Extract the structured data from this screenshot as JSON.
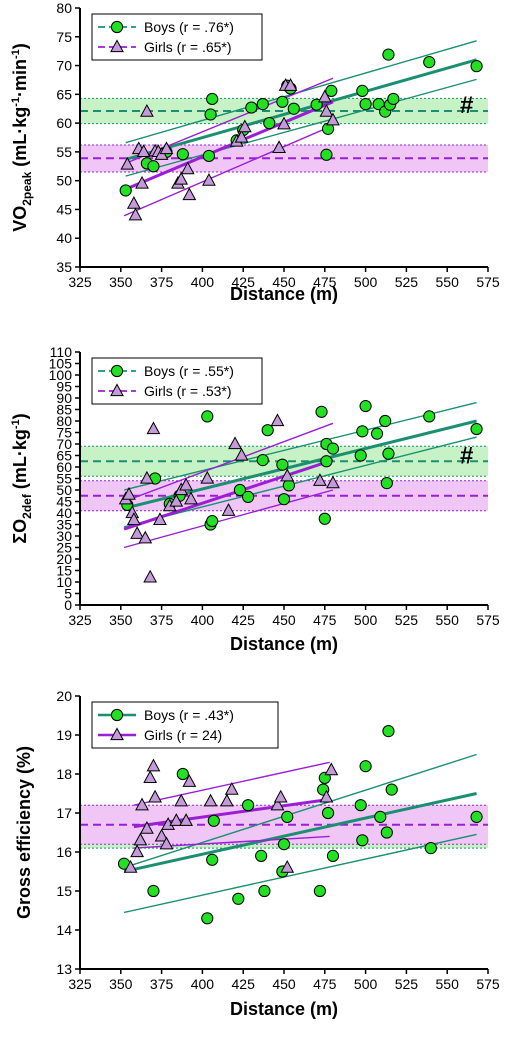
{
  "colors": {
    "boys": "#1a9070",
    "boys_fill": "#22e022",
    "girls": "#9b1ed6",
    "girls_fill": "#c49ad8",
    "boys_band": "#c6f2c6",
    "girls_band": "#efc6f5"
  },
  "chart_data": [
    {
      "type": "scatter",
      "xlabel": "Distance (m)",
      "ylabel_main": "VO",
      "ylabel_sub": "2peak",
      "ylabel_units": " (mL·kg",
      "ylabel_sup1": "-1",
      "ylabel_mid": "·min",
      "ylabel_sup2": "-1",
      "ylabel_end": ")",
      "xlim": [
        325,
        575
      ],
      "ylim": [
        35,
        80
      ],
      "xticks": [
        325,
        350,
        375,
        400,
        425,
        450,
        475,
        500,
        525,
        550,
        575
      ],
      "yticks": [
        35,
        40,
        45,
        50,
        55,
        60,
        65,
        70,
        75,
        80
      ],
      "legend": [
        "Boys (r = .76*)",
        "Girls (r = .65*)"
      ],
      "legend_position": "top-left",
      "annotation": "#",
      "series": [
        {
          "name": "Boys (r = .76*)",
          "marker": "circle",
          "points": [
            [
              353,
              48.3
            ],
            [
              366,
              53
            ],
            [
              370,
              52.5
            ],
            [
              378,
              55
            ],
            [
              388,
              54.6
            ],
            [
              404,
              54.3
            ],
            [
              405,
              61.5
            ],
            [
              406,
              64.2
            ],
            [
              421,
              57
            ],
            [
              425,
              58.8
            ],
            [
              430,
              62.7
            ],
            [
              437,
              63.3
            ],
            [
              441,
              60
            ],
            [
              449,
              63.7
            ],
            [
              452,
              66.5
            ],
            [
              454,
              66
            ],
            [
              456,
              62.5
            ],
            [
              470,
              63.2
            ],
            [
              476,
              54.5
            ],
            [
              477,
              59
            ],
            [
              479,
              65.6
            ],
            [
              498,
              65.6
            ],
            [
              500,
              63.3
            ],
            [
              508,
              63.3
            ],
            [
              512,
              62
            ],
            [
              514,
              71.9
            ],
            [
              515,
              63.2
            ],
            [
              517,
              64.2
            ],
            [
              539,
              70.6
            ],
            [
              568,
              69.9
            ]
          ],
          "mean": 62.1,
          "band": [
            59.9,
            64.3
          ],
          "fit": [
            [
              353,
              53.7
            ],
            [
              568,
              71
            ]
          ],
          "ci_upper": [
            [
              353,
              56.6
            ],
            [
              568,
              74.3
            ]
          ],
          "ci_lower": [
            [
              353,
              50.8
            ],
            [
              568,
              67.6
            ]
          ]
        },
        {
          "name": "Girls (r = .65*)",
          "marker": "triangle",
          "points": [
            [
              354,
              52.8
            ],
            [
              358,
              46
            ],
            [
              359,
              44
            ],
            [
              361,
              55.5
            ],
            [
              363,
              49.5
            ],
            [
              364,
              55
            ],
            [
              366,
              62
            ],
            [
              371,
              55.1
            ],
            [
              373,
              55
            ],
            [
              375,
              54.5
            ],
            [
              378,
              55.5
            ],
            [
              385,
              49.5
            ],
            [
              387,
              50.2
            ],
            [
              391,
              52
            ],
            [
              392,
              47.5
            ],
            [
              404,
              50
            ],
            [
              421,
              56.8
            ],
            [
              424,
              57.5
            ],
            [
              426,
              59.3
            ],
            [
              447,
              55.7
            ],
            [
              450,
              59.8
            ],
            [
              451,
              66.5
            ],
            [
              454,
              66.5
            ],
            [
              475,
              64.5
            ],
            [
              476,
              62
            ],
            [
              480,
              60.5
            ]
          ],
          "mean": 53.9,
          "band": [
            51.5,
            56.2
          ],
          "fit": [
            [
              352,
              48.4
            ],
            [
              480,
              63.7
            ]
          ],
          "ci_upper": [
            [
              352,
              52.9
            ],
            [
              480,
              67.8
            ]
          ],
          "ci_lower": [
            [
              352,
              43.9
            ],
            [
              480,
              59.6
            ]
          ]
        }
      ]
    },
    {
      "type": "scatter",
      "xlabel": "Distance (m)",
      "ylabel_main": "ΣO",
      "ylabel_sub": "2def",
      "ylabel_units": " (mL·kg",
      "ylabel_sup1": "-1",
      "ylabel_mid": "",
      "ylabel_sup2": "",
      "ylabel_end": ")",
      "xlim": [
        325,
        575
      ],
      "ylim": [
        0,
        110
      ],
      "xticks": [
        325,
        350,
        375,
        400,
        425,
        450,
        475,
        500,
        525,
        550,
        575
      ],
      "yticks": [
        0,
        5,
        10,
        15,
        20,
        25,
        30,
        35,
        40,
        45,
        50,
        55,
        60,
        65,
        70,
        75,
        80,
        85,
        90,
        95,
        100,
        105,
        110
      ],
      "legend": [
        "Boys (r = .55*)",
        "Girls (r = .53*)"
      ],
      "legend_position": "top-left",
      "annotation": "#",
      "series": [
        {
          "name": "Boys (r = .55*)",
          "marker": "circle",
          "points": [
            [
              354,
              43.5
            ],
            [
              371,
              55
            ],
            [
              380,
              44
            ],
            [
              386,
              47.5
            ],
            [
              403,
              82
            ],
            [
              405,
              35
            ],
            [
              406,
              36.5
            ],
            [
              423,
              50
            ],
            [
              428,
              47
            ],
            [
              437,
              63
            ],
            [
              440,
              76
            ],
            [
              449,
              61
            ],
            [
              450,
              46
            ],
            [
              453,
              52
            ],
            [
              473,
              84
            ],
            [
              475,
              37.5
            ],
            [
              476,
              70
            ],
            [
              476,
              62.5
            ],
            [
              480,
              68
            ],
            [
              497,
              65
            ],
            [
              498,
              75.5
            ],
            [
              500,
              86.5
            ],
            [
              507,
              74.5
            ],
            [
              512,
              80
            ],
            [
              513,
              53
            ],
            [
              514,
              65.8
            ],
            [
              539,
              82
            ],
            [
              568,
              76.5
            ]
          ],
          "mean": 62.5,
          "band": [
            56,
            69
          ],
          "fit": [
            [
              352,
              42
            ],
            [
              568,
              80
            ]
          ],
          "ci_upper": [
            [
              352,
              50
            ],
            [
              568,
              88
            ]
          ],
          "ci_lower": [
            [
              352,
              34
            ],
            [
              568,
              73
            ]
          ]
        },
        {
          "name": "Girls (r = .53*)",
          "marker": "triangle",
          "points": [
            [
              353,
              46
            ],
            [
              355,
              48
            ],
            [
              357,
              40
            ],
            [
              358,
              37
            ],
            [
              360,
              31
            ],
            [
              365,
              29
            ],
            [
              366,
              55
            ],
            [
              368,
              12
            ],
            [
              370,
              76.5
            ],
            [
              374,
              37
            ],
            [
              380,
              43
            ],
            [
              384,
              45
            ],
            [
              387,
              50
            ],
            [
              390,
              52
            ],
            [
              393,
              46
            ],
            [
              403,
              55
            ],
            [
              416,
              41
            ],
            [
              420,
              70
            ],
            [
              424,
              65
            ],
            [
              446,
              80
            ],
            [
              452,
              56
            ],
            [
              472,
              54
            ],
            [
              480,
              53
            ]
          ],
          "mean": 47.5,
          "band": [
            41,
            54
          ],
          "fit": [
            [
              352,
              33
            ],
            [
              480,
              63
            ]
          ],
          "ci_upper": [
            [
              352,
              45
            ],
            [
              480,
              79
            ]
          ],
          "ci_lower": [
            [
              352,
              25
            ],
            [
              480,
              50
            ]
          ]
        }
      ]
    },
    {
      "type": "scatter",
      "xlabel": "Distance (m)",
      "ylabel_main": "Gross efficiency (%)",
      "ylabel_sub": "",
      "ylabel_units": "",
      "ylabel_sup1": "",
      "ylabel_mid": "",
      "ylabel_sup2": "",
      "ylabel_end": "",
      "xlim": [
        325,
        575
      ],
      "ylim": [
        13,
        20
      ],
      "xticks": [
        325,
        350,
        375,
        400,
        425,
        450,
        475,
        500,
        525,
        550,
        575
      ],
      "yticks": [
        13,
        14,
        15,
        16,
        17,
        18,
        19,
        20
      ],
      "legend": [
        "Boys (r = .43*)",
        "Girls (r = 24)"
      ],
      "legend_position": "top-left",
      "annotation": "",
      "series": [
        {
          "name": "Boys (r = .43*)",
          "marker": "circle",
          "points": [
            [
              352,
              15.7
            ],
            [
              370,
              15
            ],
            [
              388,
              18
            ],
            [
              403,
              14.3
            ],
            [
              406,
              15.8
            ],
            [
              407,
              16.8
            ],
            [
              422,
              14.8
            ],
            [
              428,
              17.2
            ],
            [
              436,
              15.9
            ],
            [
              438,
              15
            ],
            [
              449,
              15.5
            ],
            [
              450,
              16.2
            ],
            [
              452,
              16.9
            ],
            [
              472,
              15
            ],
            [
              474,
              17.6
            ],
            [
              475,
              17.9
            ],
            [
              477,
              17
            ],
            [
              480,
              15.9
            ],
            [
              497,
              17.2
            ],
            [
              500,
              18.2
            ],
            [
              498,
              16.3
            ],
            [
              509,
              16.9
            ],
            [
              513,
              16.5
            ],
            [
              514,
              19.1
            ],
            [
              516,
              17.6
            ],
            [
              540,
              16.1
            ],
            [
              568,
              16.9
            ]
          ],
          "mean": 16.5,
          "band": [
            16.1,
            17
          ],
          "fit": [
            [
              352,
              15.5
            ],
            [
              568,
              17.5
            ]
          ],
          "ci_upper": [
            [
              352,
              15.6
            ],
            [
              568,
              18.5
            ]
          ],
          "ci_lower": [
            [
              352,
              14.45
            ],
            [
              568,
              16.45
            ]
          ]
        },
        {
          "name": "Girls (r = 24)",
          "marker": "triangle",
          "points": [
            [
              356,
              15.6
            ],
            [
              360,
              16
            ],
            [
              362,
              16.3
            ],
            [
              363,
              17.2
            ],
            [
              366,
              16.6
            ],
            [
              368,
              17.9
            ],
            [
              370,
              18.2
            ],
            [
              371,
              17.4
            ],
            [
              375,
              16.4
            ],
            [
              378,
              16.2
            ],
            [
              379,
              16.7
            ],
            [
              384,
              16.8
            ],
            [
              387,
              17.3
            ],
            [
              390,
              16.8
            ],
            [
              392,
              17.8
            ],
            [
              405,
              17.3
            ],
            [
              415,
              17.3
            ],
            [
              418,
              17.6
            ],
            [
              446,
              17.2
            ],
            [
              448,
              17.4
            ],
            [
              452,
              15.6
            ],
            [
              476,
              17.4
            ],
            [
              479,
              18.1
            ]
          ],
          "mean": 16.7,
          "band": [
            16.2,
            17.2
          ],
          "fit": [
            [
              358,
              16.65
            ],
            [
              478,
              17.35
            ]
          ],
          "ci_upper": [
            [
              358,
              17.2
            ],
            [
              478,
              18.3
            ]
          ],
          "ci_lower": [
            [
              358,
              16.1
            ],
            [
              478,
              16.4
            ]
          ]
        }
      ]
    }
  ]
}
